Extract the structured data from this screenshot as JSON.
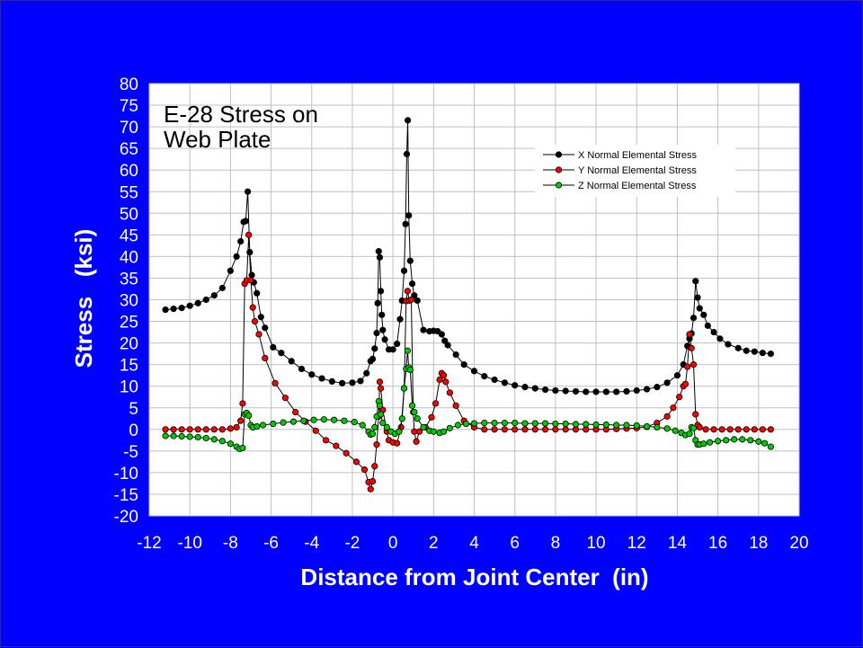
{
  "slide": {
    "background": "#0000FF"
  },
  "chart_data": {
    "type": "line",
    "title_lines": [
      "E-28 Stress on",
      "Web Plate"
    ],
    "xlabel": "Distance from Joint Center  (in)",
    "ylabel": "Stress   (ksi)",
    "xlim": [
      -12,
      20
    ],
    "ylim": [
      -20,
      80
    ],
    "x_ticks": [
      "-12",
      "-10",
      "-8",
      "-6",
      "-4",
      "-2",
      "0",
      "2",
      "4",
      "6",
      "8",
      "10",
      "12",
      "14",
      "16",
      "18",
      "20"
    ],
    "y_ticks": [
      "80",
      "75",
      "70",
      "65",
      "60",
      "55",
      "50",
      "45",
      "40",
      "35",
      "30",
      "25",
      "20",
      "15",
      "10",
      "5",
      "0",
      "-5",
      "-10",
      "-15",
      "-20"
    ],
    "grid": true,
    "plot_background": "#FFFFFF",
    "grid_color": "#C0C0C0",
    "legend": {
      "position": "top-right"
    },
    "series": [
      {
        "name": "X Normal Elemental Stress",
        "color": "#000000",
        "points": [
          [
            -11.2,
            27.7
          ],
          [
            -10.8,
            27.9
          ],
          [
            -10.4,
            28.1
          ],
          [
            -10,
            28.6
          ],
          [
            -9.6,
            29.2
          ],
          [
            -9.2,
            30
          ],
          [
            -8.8,
            31
          ],
          [
            -8.4,
            32.7
          ],
          [
            -8,
            36.7
          ],
          [
            -7.7,
            40
          ],
          [
            -7.5,
            43.5
          ],
          [
            -7.35,
            48
          ],
          [
            -7.25,
            48.2
          ],
          [
            -7.15,
            55
          ],
          [
            -7.05,
            41
          ],
          [
            -6.95,
            35.7
          ],
          [
            -6.85,
            34
          ],
          [
            -6.7,
            31.5
          ],
          [
            -6.5,
            26
          ],
          [
            -6.3,
            23.5
          ],
          [
            -5.9,
            19
          ],
          [
            -5.5,
            17.7
          ],
          [
            -5,
            15.8
          ],
          [
            -4.5,
            14
          ],
          [
            -4,
            12.7
          ],
          [
            -3.5,
            11.8
          ],
          [
            -3,
            11.1
          ],
          [
            -2.5,
            10.7
          ],
          [
            -2,
            10.8
          ],
          [
            -1.6,
            11.2
          ],
          [
            -1.3,
            13
          ],
          [
            -1.1,
            15.8
          ],
          [
            -1,
            16.3
          ],
          [
            -0.9,
            18.7
          ],
          [
            -0.8,
            22.3
          ],
          [
            -0.75,
            29.2
          ],
          [
            -0.7,
            41.2
          ],
          [
            -0.65,
            39.8
          ],
          [
            -0.6,
            32
          ],
          [
            -0.55,
            26.5
          ],
          [
            -0.5,
            23
          ],
          [
            -0.4,
            20.8
          ],
          [
            -0.2,
            18.5
          ],
          [
            0,
            18.5
          ],
          [
            0.2,
            19.8
          ],
          [
            0.35,
            25.5
          ],
          [
            0.45,
            29.8
          ],
          [
            0.55,
            36.7
          ],
          [
            0.62,
            47.5
          ],
          [
            0.68,
            63.7
          ],
          [
            0.73,
            71.5
          ],
          [
            0.78,
            49.5
          ],
          [
            0.85,
            39
          ],
          [
            0.95,
            33.7
          ],
          [
            1.05,
            31
          ],
          [
            1.2,
            29.8
          ],
          [
            1.5,
            23
          ],
          [
            1.8,
            22.7
          ],
          [
            2,
            22.8
          ],
          [
            2.2,
            22.7
          ],
          [
            2.4,
            22
          ],
          [
            2.55,
            20.5
          ],
          [
            2.7,
            19.5
          ],
          [
            3.1,
            17.3
          ],
          [
            3.5,
            15
          ],
          [
            4,
            13.5
          ],
          [
            4.5,
            12.3
          ],
          [
            5,
            11.5
          ],
          [
            5.5,
            10.8
          ],
          [
            6,
            10.2
          ],
          [
            6.5,
            9.8
          ],
          [
            7,
            9.5
          ],
          [
            7.5,
            9.2
          ],
          [
            8,
            9
          ],
          [
            8.5,
            8.9
          ],
          [
            9,
            8.8
          ],
          [
            9.5,
            8.7
          ],
          [
            10,
            8.7
          ],
          [
            10.5,
            8.7
          ],
          [
            11,
            8.7
          ],
          [
            11.5,
            8.8
          ],
          [
            12,
            9
          ],
          [
            12.5,
            9.3
          ],
          [
            13,
            9.8
          ],
          [
            13.5,
            10.8
          ],
          [
            14,
            12.5
          ],
          [
            14.3,
            15
          ],
          [
            14.5,
            19.3
          ],
          [
            14.6,
            21
          ],
          [
            14.7,
            22.2
          ],
          [
            14.8,
            25.8
          ],
          [
            14.9,
            34.3
          ],
          [
            15,
            30.5
          ],
          [
            15.1,
            28
          ],
          [
            15.3,
            26.5
          ],
          [
            15.5,
            24
          ],
          [
            15.8,
            22.5
          ],
          [
            16.1,
            21
          ],
          [
            16.5,
            19.7
          ],
          [
            17,
            18.8
          ],
          [
            17.4,
            18.2
          ],
          [
            17.8,
            18
          ],
          [
            18.2,
            17.7
          ],
          [
            18.6,
            17.5
          ]
        ]
      },
      {
        "name": "Y Normal Elemental Stress",
        "color": "#FF0000",
        "points": [
          [
            -11.2,
            0
          ],
          [
            -10.8,
            0
          ],
          [
            -10.4,
            0
          ],
          [
            -10,
            0
          ],
          [
            -9.6,
            0
          ],
          [
            -9.2,
            0
          ],
          [
            -8.8,
            0
          ],
          [
            -8.4,
            0
          ],
          [
            -8,
            0.2
          ],
          [
            -7.7,
            0.5
          ],
          [
            -7.5,
            2
          ],
          [
            -7.4,
            6
          ],
          [
            -7.3,
            33.7
          ],
          [
            -7.2,
            34.5
          ],
          [
            -7.1,
            45
          ],
          [
            -7,
            34.5
          ],
          [
            -6.9,
            28.2
          ],
          [
            -6.8,
            25
          ],
          [
            -6.6,
            22
          ],
          [
            -6.3,
            16.5
          ],
          [
            -5.8,
            10.7
          ],
          [
            -5.3,
            7.3
          ],
          [
            -4.8,
            4
          ],
          [
            -4.3,
            1.8
          ],
          [
            -3.8,
            -0.3
          ],
          [
            -3.3,
            -2.5
          ],
          [
            -2.8,
            -3.8
          ],
          [
            -2.3,
            -5.5
          ],
          [
            -1.8,
            -7.5
          ],
          [
            -1.4,
            -9.3
          ],
          [
            -1.2,
            -12.2
          ],
          [
            -1.1,
            -13.8
          ],
          [
            -1,
            -12
          ],
          [
            -0.9,
            -8.5
          ],
          [
            -0.8,
            -3.5
          ],
          [
            -0.7,
            3
          ],
          [
            -0.65,
            11
          ],
          [
            -0.6,
            9.5
          ],
          [
            -0.5,
            4.5
          ],
          [
            -0.3,
            -0.5
          ],
          [
            -0.2,
            -2.5
          ],
          [
            0,
            -3
          ],
          [
            0.2,
            -3.2
          ],
          [
            0.4,
            0.5
          ],
          [
            0.55,
            9.5
          ],
          [
            0.65,
            29.7
          ],
          [
            0.72,
            32
          ],
          [
            0.8,
            29.8
          ],
          [
            0.9,
            30
          ],
          [
            1,
            4
          ],
          [
            1.05,
            -0.5
          ],
          [
            1.15,
            -2.8
          ],
          [
            1.3,
            -0.5
          ],
          [
            1.6,
            0.5
          ],
          [
            1.9,
            2.8
          ],
          [
            2.1,
            6
          ],
          [
            2.3,
            11.5
          ],
          [
            2.4,
            13
          ],
          [
            2.5,
            12.5
          ],
          [
            2.6,
            11
          ],
          [
            2.8,
            8.5
          ],
          [
            3.1,
            5.5
          ],
          [
            3.5,
            2
          ],
          [
            4,
            0.5
          ],
          [
            4.5,
            0
          ],
          [
            5,
            0
          ],
          [
            5.5,
            0
          ],
          [
            6,
            0
          ],
          [
            6.5,
            0
          ],
          [
            7,
            0
          ],
          [
            7.5,
            0
          ],
          [
            8,
            0
          ],
          [
            8.5,
            0
          ],
          [
            9,
            0
          ],
          [
            9.5,
            0
          ],
          [
            10,
            0
          ],
          [
            10.5,
            0
          ],
          [
            11,
            0.1
          ],
          [
            11.5,
            0.2
          ],
          [
            12,
            0.3
          ],
          [
            12.5,
            0.6
          ],
          [
            13,
            1.5
          ],
          [
            13.5,
            3
          ],
          [
            13.8,
            5
          ],
          [
            14.1,
            7.5
          ],
          [
            14.3,
            10
          ],
          [
            14.4,
            10.5
          ],
          [
            14.5,
            14.5
          ],
          [
            14.6,
            22
          ],
          [
            14.7,
            18.8
          ],
          [
            14.8,
            15
          ],
          [
            14.9,
            3.5
          ],
          [
            15,
            1
          ],
          [
            15.1,
            0.5
          ],
          [
            15.4,
            0
          ],
          [
            15.8,
            0
          ],
          [
            16.2,
            0
          ],
          [
            16.6,
            0
          ],
          [
            17,
            0
          ],
          [
            17.4,
            0
          ],
          [
            17.8,
            0
          ],
          [
            18.2,
            0
          ],
          [
            18.6,
            0
          ]
        ]
      },
      {
        "name": "Z Normal Elemental Stress",
        "color": "#00CC00",
        "points": [
          [
            -11.2,
            -1.5
          ],
          [
            -10.8,
            -1.5
          ],
          [
            -10.4,
            -1.6
          ],
          [
            -10,
            -1.7
          ],
          [
            -9.6,
            -1.8
          ],
          [
            -9.2,
            -2
          ],
          [
            -8.8,
            -2.3
          ],
          [
            -8.4,
            -2.7
          ],
          [
            -8,
            -3.3
          ],
          [
            -7.7,
            -4
          ],
          [
            -7.55,
            -4.5
          ],
          [
            -7.4,
            -4.3
          ],
          [
            -7.3,
            3.5
          ],
          [
            -7.2,
            3.8
          ],
          [
            -7.1,
            3.2
          ],
          [
            -7,
            1
          ],
          [
            -6.9,
            0.5
          ],
          [
            -6.7,
            0.7
          ],
          [
            -6.4,
            1
          ],
          [
            -5.9,
            1.3
          ],
          [
            -5.4,
            1.6
          ],
          [
            -4.9,
            1.8
          ],
          [
            -4.4,
            2
          ],
          [
            -3.9,
            2.2
          ],
          [
            -3.4,
            2.3
          ],
          [
            -2.9,
            2.2
          ],
          [
            -2.4,
            2
          ],
          [
            -1.9,
            1.7
          ],
          [
            -1.5,
            1
          ],
          [
            -1.2,
            -0.5
          ],
          [
            -1.1,
            -1.2
          ],
          [
            -1,
            -1
          ],
          [
            -0.9,
            0.5
          ],
          [
            -0.8,
            3
          ],
          [
            -0.7,
            6.5
          ],
          [
            -0.65,
            5.5
          ],
          [
            -0.6,
            3.5
          ],
          [
            -0.5,
            1.5
          ],
          [
            -0.3,
            0.5
          ],
          [
            -0.1,
            -0.5
          ],
          [
            0.1,
            -1
          ],
          [
            0.3,
            -0.5
          ],
          [
            0.45,
            2.5
          ],
          [
            0.55,
            9.5
          ],
          [
            0.65,
            14
          ],
          [
            0.72,
            18.2
          ],
          [
            0.78,
            14.3
          ],
          [
            0.85,
            13.8
          ],
          [
            0.95,
            5.5
          ],
          [
            1.05,
            4
          ],
          [
            1.2,
            2.5
          ],
          [
            1.5,
            0.5
          ],
          [
            1.8,
            -0.3
          ],
          [
            2,
            -0.5
          ],
          [
            2.3,
            -0.8
          ],
          [
            2.5,
            -0.5
          ],
          [
            2.8,
            0.3
          ],
          [
            3.2,
            1
          ],
          [
            3.6,
            1.3
          ],
          [
            4,
            1.4
          ],
          [
            4.5,
            1.5
          ],
          [
            5,
            1.5
          ],
          [
            5.5,
            1.5
          ],
          [
            6,
            1.5
          ],
          [
            6.5,
            1.4
          ],
          [
            7,
            1.4
          ],
          [
            7.5,
            1.4
          ],
          [
            8,
            1.3
          ],
          [
            8.5,
            1.3
          ],
          [
            9,
            1.2
          ],
          [
            9.5,
            1.2
          ],
          [
            10,
            1.1
          ],
          [
            10.5,
            1.1
          ],
          [
            11,
            1
          ],
          [
            11.5,
            1
          ],
          [
            12,
            0.9
          ],
          [
            12.5,
            0.7
          ],
          [
            13,
            0.5
          ],
          [
            13.5,
            0.2
          ],
          [
            13.9,
            -0.3
          ],
          [
            14.2,
            -0.8
          ],
          [
            14.4,
            -1.3
          ],
          [
            14.6,
            -1
          ],
          [
            14.7,
            0.5
          ],
          [
            14.8,
            0.3
          ],
          [
            14.9,
            -2.5
          ],
          [
            15,
            -3.5
          ],
          [
            15.1,
            -3.5
          ],
          [
            15.3,
            -3.3
          ],
          [
            15.6,
            -3
          ],
          [
            16,
            -2.7
          ],
          [
            16.4,
            -2.5
          ],
          [
            16.8,
            -2.3
          ],
          [
            17.2,
            -2.3
          ],
          [
            17.6,
            -2.5
          ],
          [
            18,
            -2.8
          ],
          [
            18.3,
            -3.2
          ],
          [
            18.6,
            -4
          ]
        ]
      }
    ]
  }
}
